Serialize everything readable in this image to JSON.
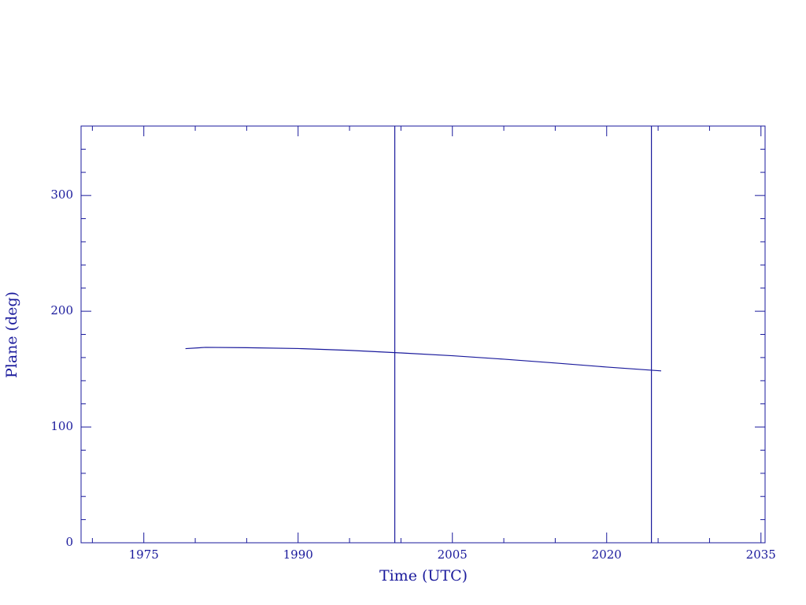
{
  "chart_data": {
    "type": "line",
    "x_label": "Time (UTC)",
    "y_label": "Plane (deg)",
    "color": "#1a1a9c",
    "xlim": [
      1968.9,
      2035.4
    ],
    "xticks": [
      1975,
      1990,
      2005,
      2020,
      2035
    ],
    "xminorticks": [
      1970,
      1980,
      1985,
      1995,
      2000,
      2010,
      2015,
      2025,
      2030
    ],
    "ylim": [
      0,
      360
    ],
    "yticks": [
      0,
      100,
      200,
      300
    ],
    "yminorticks": [
      20,
      40,
      60,
      80,
      120,
      140,
      160,
      180,
      220,
      240,
      260,
      280,
      320,
      340
    ],
    "vlines": [
      1999.4,
      2024.35
    ],
    "x": [
      1979.05,
      1981,
      1985,
      1990,
      1995,
      2000,
      2005,
      2010,
      2015,
      2020,
      2025.3
    ],
    "values": [
      167.7,
      168.8,
      168.5,
      167.8,
      166.2,
      164,
      161.6,
      158.6,
      155.3,
      151.8,
      148.5
    ]
  }
}
